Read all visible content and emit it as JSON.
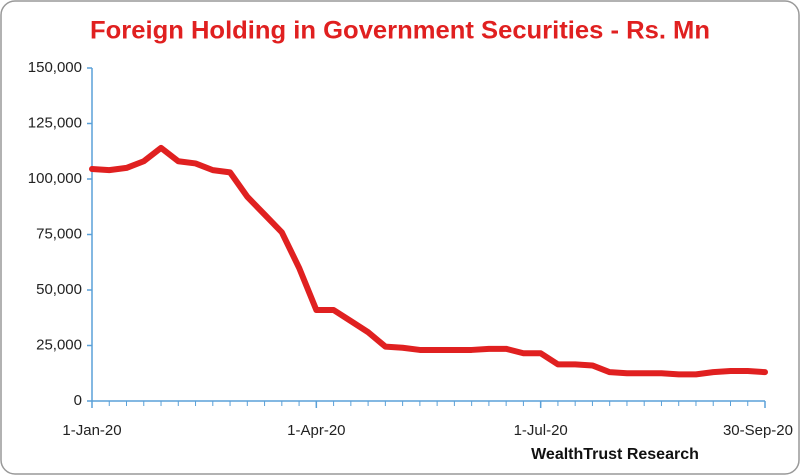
{
  "chart_data": {
    "type": "line",
    "title": "Foreign Holding in Government Securities - Rs. Mn",
    "source": "WealthTrust Research",
    "x": [
      "2020-01-01",
      "2020-01-08",
      "2020-01-15",
      "2020-01-22",
      "2020-01-29",
      "2020-02-05",
      "2020-02-12",
      "2020-02-19",
      "2020-02-26",
      "2020-03-04",
      "2020-03-11",
      "2020-03-18",
      "2020-03-25",
      "2020-04-01",
      "2020-04-08",
      "2020-04-15",
      "2020-04-22",
      "2020-04-29",
      "2020-05-06",
      "2020-05-13",
      "2020-05-20",
      "2020-05-27",
      "2020-06-03",
      "2020-06-10",
      "2020-06-17",
      "2020-06-24",
      "2020-07-01",
      "2020-07-08",
      "2020-07-15",
      "2020-07-22",
      "2020-07-29",
      "2020-08-05",
      "2020-08-12",
      "2020-08-19",
      "2020-08-26",
      "2020-09-02",
      "2020-09-09",
      "2020-09-16",
      "2020-09-23",
      "2020-09-30"
    ],
    "series": [
      {
        "name": "Foreign Holding",
        "color": "#e02020",
        "values": [
          104500,
          104000,
          105000,
          108000,
          114000,
          108000,
          107000,
          104000,
          103000,
          92000,
          84000,
          76000,
          60000,
          41000,
          41000,
          36000,
          31000,
          24500,
          24000,
          23000,
          23000,
          23000,
          23000,
          23500,
          23500,
          21500,
          21500,
          16500,
          16500,
          16000,
          13000,
          12500,
          12500,
          12500,
          12000,
          12000,
          13000,
          13500,
          13500,
          13000
        ]
      }
    ],
    "xlim": [
      "2020-01-01",
      "2020-09-30"
    ],
    "xticks": [
      {
        "value": "2020-01-01",
        "label": "1-Jan-20"
      },
      {
        "value": "2020-04-01",
        "label": "1-Apr-20"
      },
      {
        "value": "2020-07-01",
        "label": "1-Jul-20"
      },
      {
        "value": "2020-09-30",
        "label": "30-Sep-20"
      }
    ],
    "ylim": [
      0,
      150000
    ],
    "yticks": [
      {
        "value": 0,
        "label": "0"
      },
      {
        "value": 25000,
        "label": "25,000"
      },
      {
        "value": 50000,
        "label": "50,000"
      },
      {
        "value": 75000,
        "label": "75,000"
      },
      {
        "value": 100000,
        "label": "100,000"
      },
      {
        "value": 125000,
        "label": "125,000"
      },
      {
        "value": 150000,
        "label": "150,000"
      }
    ]
  }
}
